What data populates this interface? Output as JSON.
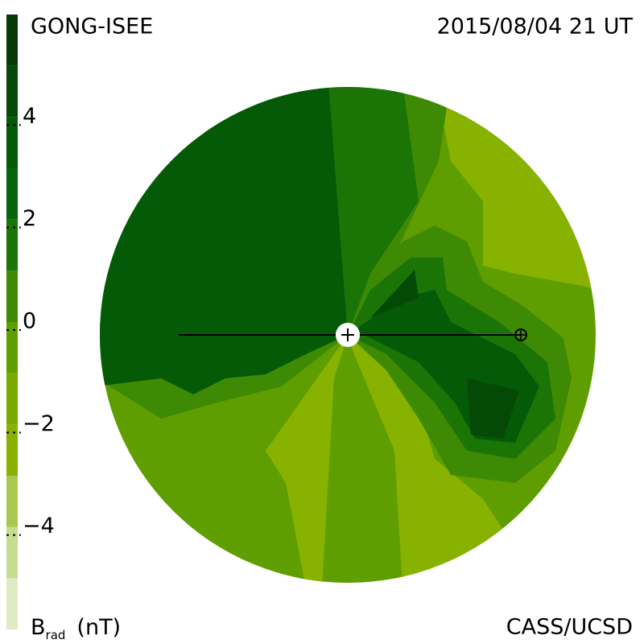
{
  "chart_data": {
    "type": "heliospheric-map",
    "title": "GONG-ISEE",
    "subtitle": "2015/08/04 21 UT",
    "credit": "CASS/UCSD",
    "colorbar": {
      "label": "B",
      "label_sub": "rad",
      "unit": "(nT)",
      "clim": [
        -6,
        6
      ],
      "levels": [
        -6,
        -5,
        -4,
        -3,
        -2,
        -1,
        0,
        1,
        2,
        3,
        4,
        5,
        6
      ],
      "colors": [
        "#e0ebc4",
        "#c6dc8e",
        "#a8c850",
        "#88b200",
        "#78aa00",
        "#5f9e00",
        "#3f8a04",
        "#1a7506",
        "#06640a",
        "#055a08",
        "#044a06",
        "#063a08"
      ],
      "ticks": [
        {
          "value": -4,
          "label": "−4"
        },
        {
          "value": -2,
          "label": "−2"
        },
        0,
        2,
        4
      ]
    }
  }
}
